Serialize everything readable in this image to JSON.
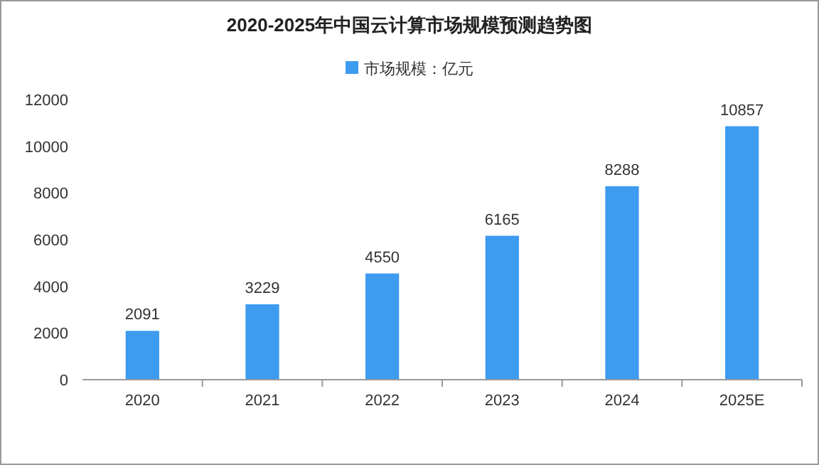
{
  "chart_data": {
    "type": "bar",
    "title": "2020-2025年中国云计算市场规模预测趋势图",
    "categories": [
      "2020",
      "2021",
      "2022",
      "2023",
      "2024",
      "2025E"
    ],
    "series": [
      {
        "name": "市场规模：亿元",
        "color": "#3d9bf0",
        "values": [
          2091,
          3229,
          4550,
          6165,
          8288,
          10857
        ]
      }
    ],
    "ylim": [
      0,
      12000
    ],
    "yticks": [
      0,
      2000,
      4000,
      6000,
      8000,
      10000,
      12000
    ],
    "data_labels": true,
    "legend": "top",
    "grid": false
  }
}
